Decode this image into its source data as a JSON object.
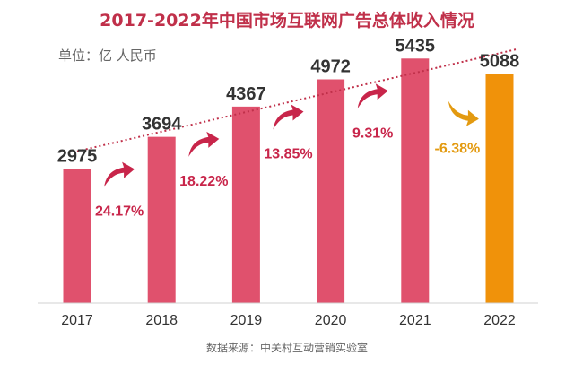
{
  "chart_data": {
    "type": "bar",
    "title": "2017-2022年中国市场互联网广告总体收入情况",
    "unit_label": "单位：亿 人民币",
    "categories": [
      "2017",
      "2018",
      "2019",
      "2020",
      "2021",
      "2022"
    ],
    "values": [
      2975,
      3694,
      4367,
      4972,
      5435,
      5088
    ],
    "value_labels": [
      "2975",
      "3694",
      "4367",
      "4972",
      "5435",
      "5088"
    ],
    "growth_labels": [
      "24.17%",
      "18.22%",
      "13.85%",
      "9.31%",
      "-6.38%"
    ],
    "ylim": [
      0,
      5600
    ],
    "trendline": "dotted",
    "grid": false,
    "legend": "none",
    "source": "数据来源：中关村互动营销实验室",
    "colors": {
      "bar": "#e0516d",
      "bar_highlight": "#f0920a",
      "growth_positive": "#c8254a",
      "growth_negative": "#e39a10",
      "trend": "#c0304a",
      "title": "#c0304a"
    }
  }
}
